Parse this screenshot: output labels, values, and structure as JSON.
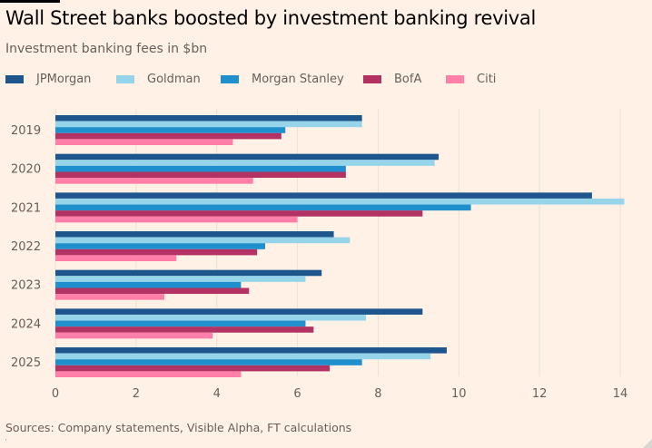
{
  "title": "Wall Street banks boosted by investment banking revival",
  "subtitle": "Investment banking fees in $bn",
  "source": "Sources: Company statements, Visible Alpha, FT calculations",
  "chart_data": {
    "type": "bar",
    "orientation": "horizontal",
    "title": "Wall Street banks boosted by investment banking revival",
    "subtitle": "Investment banking fees in $bn",
    "xlabel": "",
    "ylabel": "",
    "categories": [
      "2019",
      "2020",
      "2021",
      "2022",
      "2023",
      "2024",
      "2025"
    ],
    "xlim": [
      0,
      14
    ],
    "xticks": [
      0,
      2,
      4,
      6,
      8,
      10,
      12,
      14
    ],
    "grid": true,
    "legend_position": "top-left",
    "series": [
      {
        "name": "JPMorgan",
        "color": "#1e558c",
        "values": [
          7.6,
          9.5,
          13.3,
          6.9,
          6.6,
          9.1,
          9.7
        ]
      },
      {
        "name": "Goldman",
        "color": "#96d4ea",
        "values": [
          7.6,
          9.4,
          14.1,
          7.3,
          6.2,
          7.7,
          9.3
        ]
      },
      {
        "name": "Morgan Stanley",
        "color": "#1f8fce",
        "values": [
          5.7,
          7.2,
          10.3,
          5.2,
          4.6,
          6.2,
          7.6
        ]
      },
      {
        "name": "BofA",
        "color": "#b23363",
        "values": [
          5.6,
          7.2,
          9.1,
          5.0,
          4.8,
          6.4,
          6.8
        ]
      },
      {
        "name": "Citi",
        "color": "#ff7fa9",
        "values": [
          4.4,
          4.9,
          6.0,
          3.0,
          2.7,
          3.9,
          4.6
        ]
      }
    ]
  }
}
